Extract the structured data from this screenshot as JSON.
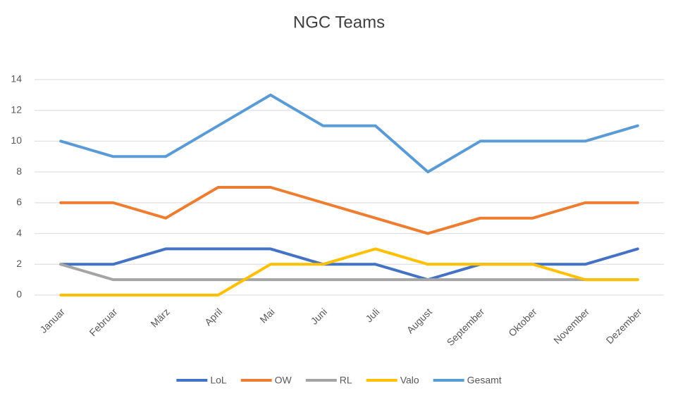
{
  "chart_data": {
    "type": "line",
    "title": "NGC Teams",
    "categories": [
      "Januar",
      "Februar",
      "März",
      "April",
      "Mai",
      "Juni",
      "Juli",
      "August",
      "September",
      "Oktober",
      "November",
      "Dezember"
    ],
    "series": [
      {
        "name": "LoL",
        "color": "#4472c4",
        "values": [
          2,
          2,
          3,
          3,
          3,
          2,
          2,
          1,
          2,
          2,
          2,
          3
        ]
      },
      {
        "name": "OW",
        "color": "#ed7d31",
        "values": [
          6,
          6,
          5,
          7,
          7,
          6,
          5,
          4,
          5,
          5,
          6,
          6
        ]
      },
      {
        "name": "RL",
        "color": "#a5a5a5",
        "values": [
          2,
          1,
          1,
          1,
          1,
          1,
          1,
          1,
          1,
          1,
          1,
          1
        ]
      },
      {
        "name": "Valo",
        "color": "#ffc000",
        "values": [
          0,
          0,
          0,
          0,
          2,
          2,
          3,
          2,
          2,
          2,
          1,
          1
        ]
      },
      {
        "name": "Gesamt",
        "color": "#5b9bd5",
        "values": [
          10,
          9,
          9,
          11,
          13,
          11,
          11,
          8,
          10,
          10,
          10,
          11
        ]
      }
    ],
    "ylim": [
      0,
      14
    ],
    "yticks": [
      0,
      2,
      4,
      6,
      8,
      10,
      12,
      14
    ],
    "grid": true,
    "legend": "bottom"
  }
}
